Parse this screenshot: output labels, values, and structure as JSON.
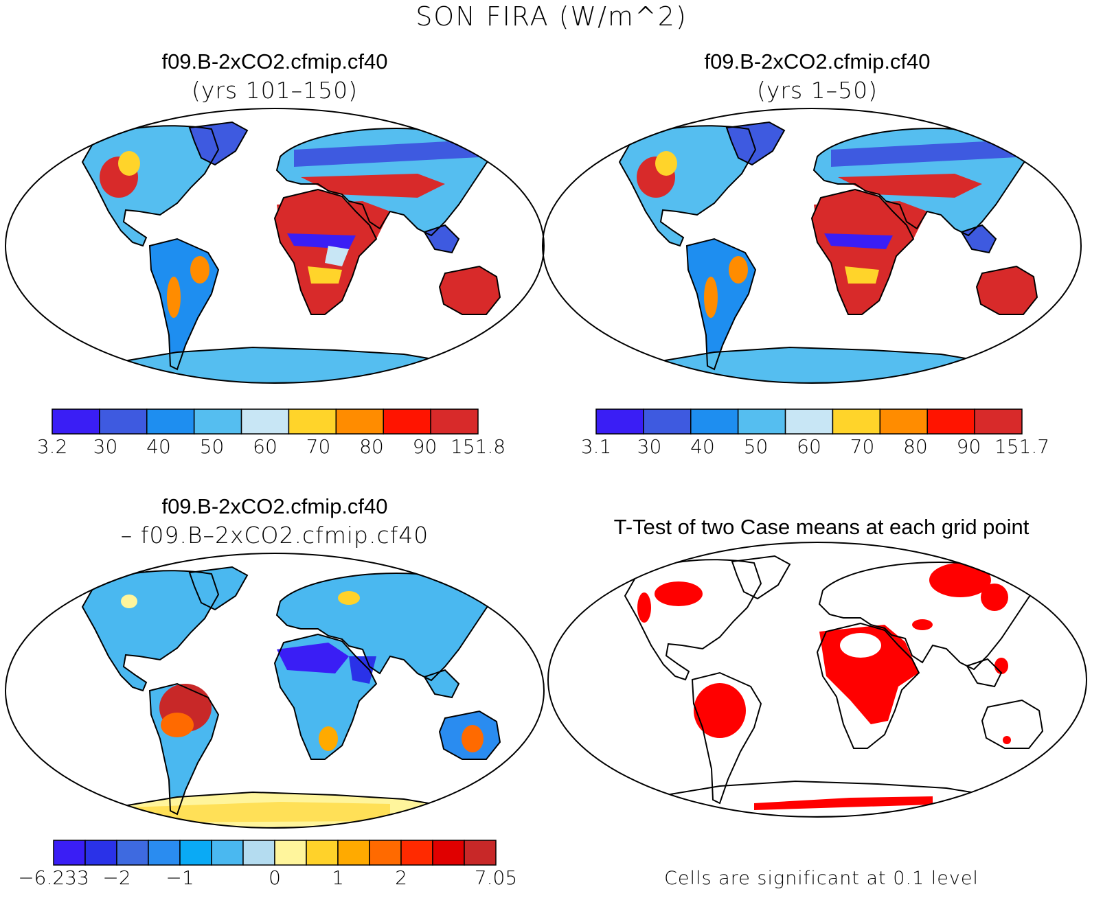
{
  "figure": {
    "title": "SON FIRA (W/m^2)"
  },
  "panels": [
    {
      "id": "case1",
      "title": "f09.B-2xCO2.cfmip.cf40",
      "subtitle": "(yrs 101–150)",
      "colorbar": {
        "colors": [
          "#3a1ef5",
          "#3e5ae0",
          "#1e8ef0",
          "#55bef0",
          "#c8e6f5",
          "#ffd42a",
          "#ff8c00",
          "#ff1400",
          "#d82a2a"
        ],
        "labels": [
          "3.2",
          "30",
          "40",
          "50",
          "60",
          "70",
          "80",
          "90",
          "151.8"
        ]
      }
    },
    {
      "id": "case2",
      "title": "f09.B-2xCO2.cfmip.cf40",
      "subtitle": "(yrs 1–50)",
      "colorbar": {
        "colors": [
          "#3a1ef5",
          "#3e5ae0",
          "#1e8ef0",
          "#55bef0",
          "#c8e6f5",
          "#ffd42a",
          "#ff8c00",
          "#ff1400",
          "#d82a2a"
        ],
        "labels": [
          "3.1",
          "30",
          "40",
          "50",
          "60",
          "70",
          "80",
          "90",
          "151.7"
        ]
      }
    },
    {
      "id": "difference",
      "title": "f09.B-2xCO2.cfmip.cf40",
      "subtitle": "– f09.B–2xCO2.cfmip.cf40",
      "colorbar": {
        "colors": [
          "#3a1ef5",
          "#2a32e8",
          "#3e6ae0",
          "#2a8cf0",
          "#0aaaf5",
          "#4ab8f0",
          "#b4dcf0",
          "#fff59c",
          "#ffd22a",
          "#ffaa00",
          "#ff6a00",
          "#ff2a00",
          "#e00000",
          "#c82828"
        ],
        "labels": [
          "−6.233",
          "",
          "−2",
          "",
          "−1",
          "",
          "",
          "0",
          "",
          "1",
          "",
          "2",
          "",
          "",
          "7.05"
        ]
      }
    },
    {
      "id": "ttest",
      "title": "T-Test of two Case means at each grid point",
      "footnote": "Cells are significant at 0.1 level",
      "significance_color": "#ff0000"
    }
  ]
}
